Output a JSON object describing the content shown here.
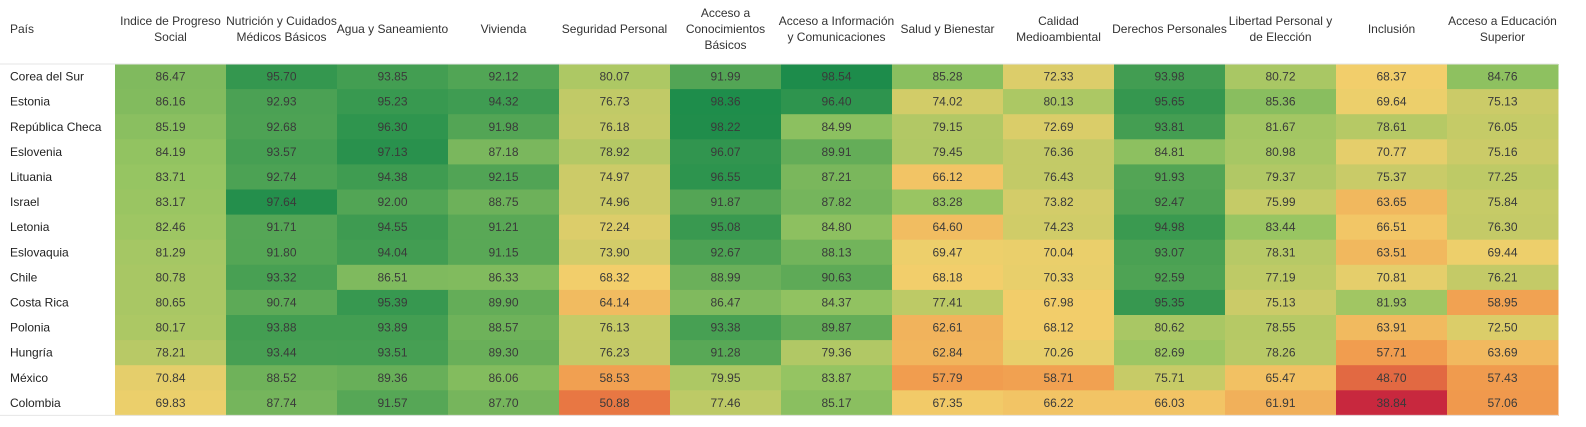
{
  "chart_data": {
    "type": "heatmap",
    "row_header": "País",
    "columns": [
      "Indice de Progreso Social",
      "Nutrición y Cuidados Médicos Básicos",
      "Agua y Saneamiento",
      "Vivienda",
      "Seguridad Personal",
      "Acceso a Conocimientos Básicos",
      "Acceso a Información y Comunicaciones",
      "Salud y Bienestar",
      "Calidad Medioambiental",
      "Derechos Personales",
      "Libertad Personal y de Elección",
      "Inclusión",
      "Acceso a Educación Superior"
    ],
    "header_lines": [
      [
        "Indice de Progreso",
        "Social"
      ],
      [
        "Nutrición y Cuidados",
        "Médicos Básicos"
      ],
      [
        "Agua y Saneamiento"
      ],
      [
        "Vivienda"
      ],
      [
        "Seguridad Personal"
      ],
      [
        "Acceso a",
        "Conocimientos",
        "Básicos"
      ],
      [
        "Acceso a Información",
        "y Comunicaciones"
      ],
      [
        "Salud y Bienestar"
      ],
      [
        "Calidad",
        "Medioambiental"
      ],
      [
        "Derechos Personales"
      ],
      [
        "Libertad Personal y",
        "de Elección"
      ],
      [
        "Inclusión"
      ],
      [
        "Acceso a Educación",
        "Superior"
      ]
    ],
    "rows": [
      "Corea del Sur",
      "Estonia",
      "República Checa",
      "Eslovenia",
      "Lituania",
      "Israel",
      "Letonia",
      "Eslovaquia",
      "Chile",
      "Costa Rica",
      "Polonia",
      "Hungría",
      "México",
      "Colombia"
    ],
    "values": [
      [
        86.47,
        95.7,
        93.85,
        92.12,
        80.07,
        91.99,
        98.54,
        85.28,
        72.33,
        93.98,
        80.72,
        68.37,
        84.76
      ],
      [
        86.16,
        92.93,
        95.23,
        94.32,
        76.73,
        98.36,
        96.4,
        74.02,
        80.13,
        95.65,
        85.36,
        69.64,
        75.13
      ],
      [
        85.19,
        92.68,
        96.3,
        91.98,
        76.18,
        98.22,
        84.99,
        79.15,
        72.69,
        93.81,
        81.67,
        78.61,
        76.05
      ],
      [
        84.19,
        93.57,
        97.13,
        87.18,
        78.92,
        96.07,
        89.91,
        79.45,
        76.36,
        84.81,
        80.98,
        70.77,
        75.16
      ],
      [
        83.71,
        92.74,
        94.38,
        92.15,
        74.97,
        96.55,
        87.21,
        66.12,
        76.43,
        91.93,
        79.37,
        75.37,
        77.25
      ],
      [
        83.17,
        97.64,
        92.0,
        88.75,
        74.96,
        91.87,
        87.82,
        83.28,
        73.82,
        92.47,
        75.99,
        63.65,
        75.84
      ],
      [
        82.46,
        91.71,
        94.55,
        91.21,
        72.24,
        95.08,
        84.8,
        64.6,
        74.23,
        94.98,
        83.44,
        66.51,
        76.3
      ],
      [
        81.29,
        91.8,
        94.04,
        91.15,
        73.9,
        92.67,
        88.13,
        69.47,
        70.04,
        93.07,
        78.31,
        63.51,
        69.44
      ],
      [
        80.78,
        93.32,
        86.51,
        86.33,
        68.32,
        88.99,
        90.63,
        68.18,
        70.33,
        92.59,
        77.19,
        70.81,
        76.21
      ],
      [
        80.65,
        90.74,
        95.39,
        89.9,
        64.14,
        86.47,
        84.37,
        77.41,
        67.98,
        95.35,
        75.13,
        81.93,
        58.95
      ],
      [
        80.17,
        93.88,
        93.89,
        88.57,
        76.13,
        93.38,
        89.87,
        62.61,
        68.12,
        80.62,
        78.55,
        63.91,
        72.5
      ],
      [
        78.21,
        93.44,
        93.51,
        89.3,
        76.23,
        91.28,
        79.36,
        62.84,
        70.26,
        82.69,
        78.26,
        57.71,
        63.69
      ],
      [
        70.84,
        88.52,
        89.36,
        86.06,
        58.53,
        79.95,
        83.87,
        57.79,
        58.71,
        75.71,
        65.47,
        48.7,
        57.43
      ],
      [
        69.83,
        87.74,
        91.57,
        87.7,
        50.88,
        77.46,
        85.17,
        67.35,
        66.22,
        66.03,
        61.91,
        38.84,
        57.06
      ]
    ],
    "color_scale": {
      "domain": [
        38.84,
        98.54
      ],
      "colors": [
        "#c8283e",
        "#f08a44",
        "#f2d06c",
        "#97c562",
        "#1d8c4b"
      ],
      "stops": [
        0.0,
        0.25,
        0.5,
        0.75,
        1.0
      ]
    },
    "grid": false,
    "legend": "none"
  }
}
